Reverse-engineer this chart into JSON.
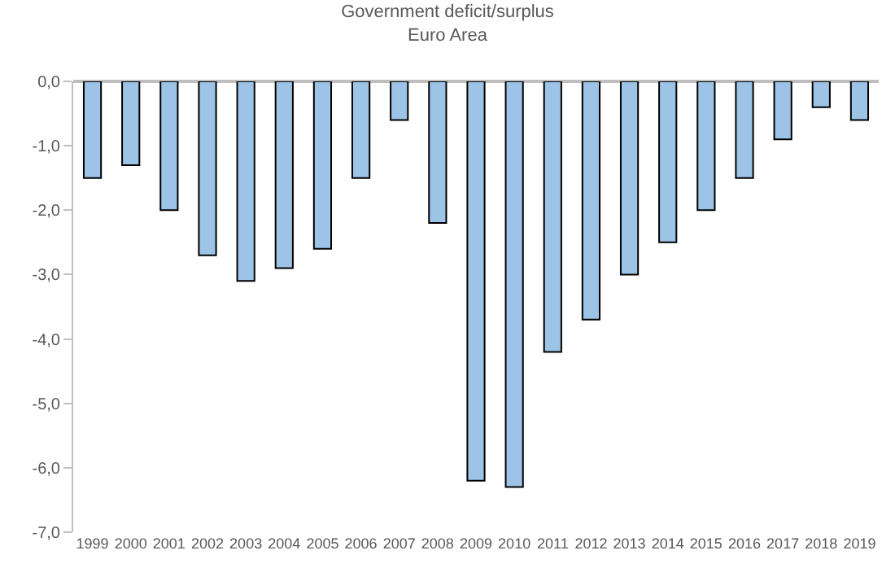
{
  "chart_data": {
    "type": "bar",
    "title": "Government deficit/surplus",
    "subtitle": "Euro Area",
    "categories": [
      "1999",
      "2000",
      "2001",
      "2002",
      "2003",
      "2004",
      "2005",
      "2006",
      "2007",
      "2008",
      "2009",
      "2010",
      "2011",
      "2012",
      "2013",
      "2014",
      "2015",
      "2016",
      "2017",
      "2018",
      "2019"
    ],
    "values": [
      -1.5,
      -1.3,
      -2.0,
      -2.7,
      -3.1,
      -2.9,
      -2.6,
      -1.5,
      -0.6,
      -2.2,
      -6.2,
      -6.3,
      -4.2,
      -3.7,
      -3.0,
      -2.5,
      -2.0,
      -1.5,
      -0.9,
      -0.4,
      -0.6
    ],
    "color": "#9dc3e6",
    "ylim": [
      -7,
      0
    ],
    "yticks": [
      {
        "value": 0,
        "label": "0,0"
      },
      {
        "value": -1,
        "label": "-1,0"
      },
      {
        "value": -2,
        "label": "-2,0"
      },
      {
        "value": -3,
        "label": "-3,0"
      },
      {
        "value": -4,
        "label": "-4,0"
      },
      {
        "value": -5,
        "label": "-5,0"
      },
      {
        "value": -6,
        "label": "-6,0"
      },
      {
        "value": -7,
        "label": "-7,0"
      }
    ]
  }
}
